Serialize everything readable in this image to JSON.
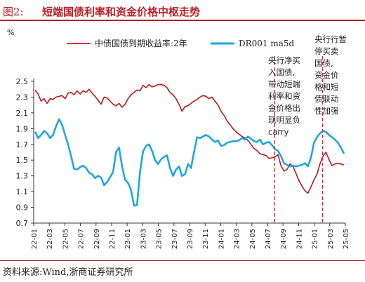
{
  "header": {
    "figure_number": "图2:",
    "title": "短端国债利率和资金价格中枢走势"
  },
  "source": "资料来源:Wind,浙商证券研究所",
  "chart_data": {
    "type": "line",
    "ylabel": "%",
    "ylim": [
      0.7,
      2.5
    ],
    "yticks": [
      "2.5",
      "2.3",
      "2.1",
      "1.9",
      "1.7",
      "1.5",
      "1.3",
      "1.1",
      "0.9",
      "0.7"
    ],
    "xticks": [
      "22-01",
      "22-03",
      "22-05",
      "22-07",
      "22-09",
      "22-11",
      "23-01",
      "23-03",
      "23-05",
      "23-07",
      "23-09",
      "23-11",
      "24-01",
      "24-03",
      "24-05",
      "24-07",
      "24-09",
      "24-11",
      "25-01",
      "25-03",
      "25-05"
    ],
    "series": [
      {
        "name": "中债国债到期收益率:2年",
        "color": "#c0161c",
        "values": [
          2.39,
          2.34,
          2.25,
          2.28,
          2.22,
          2.28,
          2.27,
          2.3,
          2.31,
          2.32,
          2.28,
          2.35,
          2.36,
          2.33,
          2.38,
          2.34,
          2.38,
          2.36,
          2.4,
          2.35,
          2.31,
          2.26,
          2.21,
          2.3,
          2.29,
          2.25,
          2.21,
          2.19,
          2.22,
          2.17,
          2.21,
          2.28,
          2.33,
          2.36,
          2.39,
          2.38,
          2.45,
          2.42,
          2.46,
          2.43,
          2.44,
          2.46,
          2.46,
          2.45,
          2.42,
          2.36,
          2.33,
          2.28,
          2.21,
          2.12,
          2.18,
          2.19,
          2.22,
          2.25,
          2.27,
          2.3,
          2.32,
          2.31,
          2.28,
          2.3,
          2.25,
          2.2,
          2.12,
          2.07,
          2.0,
          1.95,
          1.9,
          1.86,
          1.83,
          1.8,
          1.78,
          1.75,
          1.7,
          1.65,
          1.62,
          1.58,
          1.57,
          1.56,
          1.52,
          1.53,
          1.54,
          1.57,
          1.43,
          1.36,
          1.38,
          1.45,
          1.42,
          1.33,
          1.24,
          1.17,
          1.11,
          1.08,
          1.16,
          1.25,
          1.32,
          1.45,
          1.55,
          1.6,
          1.51,
          1.43,
          1.45,
          1.46,
          1.45,
          1.44
        ]
      },
      {
        "name": "DR001 ma5d",
        "color": "#1ea8dc",
        "values": [
          1.86,
          1.78,
          1.82,
          1.87,
          1.84,
          1.78,
          1.82,
          1.93,
          2.02,
          1.95,
          1.82,
          1.7,
          1.55,
          1.39,
          1.38,
          1.41,
          1.43,
          1.4,
          1.34,
          1.32,
          1.27,
          1.3,
          1.28,
          1.18,
          1.22,
          1.28,
          1.35,
          1.6,
          1.66,
          1.42,
          1.25,
          1.21,
          1.12,
          0.92,
          0.93,
          1.35,
          1.61,
          1.68,
          1.7,
          1.62,
          1.5,
          1.45,
          1.51,
          1.54,
          1.56,
          1.4,
          1.3,
          1.38,
          1.42,
          1.3,
          1.32,
          1.45,
          1.4,
          1.6,
          1.79,
          1.78,
          1.8,
          1.82,
          1.8,
          1.76,
          1.73,
          1.75,
          1.68,
          1.69,
          1.72,
          1.73,
          1.74,
          1.74,
          1.75,
          1.78,
          1.76,
          1.8,
          1.77,
          1.74,
          1.73,
          1.76,
          1.7,
          1.72,
          1.73,
          1.69,
          1.64,
          1.62,
          1.55,
          1.46,
          1.44,
          1.42,
          1.43,
          1.42,
          1.43,
          1.44,
          1.46,
          1.42,
          1.53,
          1.72,
          1.79,
          1.84,
          1.87,
          1.86,
          1.82,
          1.79,
          1.76,
          1.72,
          1.66,
          1.58
        ]
      }
    ],
    "markers": [
      {
        "x_label": "24-07",
        "label": "央行行净买入国债,带动短端利率和资金价格出现明显负carry"
      },
      {
        "x_label": "25-01",
        "label": "央行暂停买卖国债,资金价格和短债联动性加强"
      }
    ]
  },
  "annotations": {
    "left_lines": [
      "央行净买",
      "入国债,",
      "带动短端",
      "利率和资",
      "金价格出",
      "现明显负",
      "carry"
    ],
    "right_lines": [
      "央行行暂",
      "停买卖",
      "国债,",
      "资金价",
      "格和短",
      "债联动",
      "性加强"
    ]
  }
}
